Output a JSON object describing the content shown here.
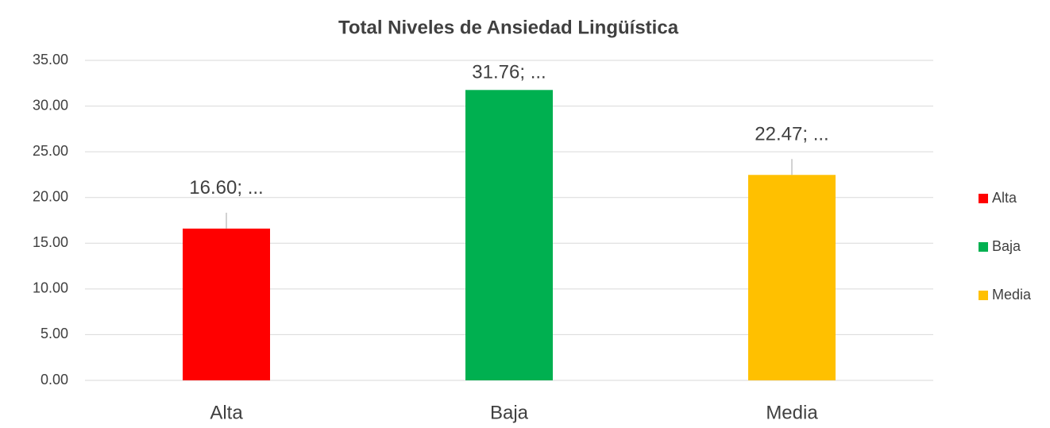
{
  "chart_data": {
    "type": "bar",
    "title": "Total Niveles de Ansiedad Lingüística",
    "categories": [
      "Alta",
      "Baja",
      "Media"
    ],
    "values": [
      16.6,
      31.76,
      22.47
    ],
    "value_labels": [
      "16.60; ...",
      "31.76; ...",
      "22.47; ..."
    ],
    "colors": [
      "#ff0000",
      "#00b050",
      "#ffc000"
    ],
    "ylim": [
      0,
      35
    ],
    "yticks": [
      {
        "value": 0,
        "label": "0.00"
      },
      {
        "value": 5,
        "label": "5.00"
      },
      {
        "value": 10,
        "label": "10.00"
      },
      {
        "value": 15,
        "label": "15.00"
      },
      {
        "value": 20,
        "label": "20.00"
      },
      {
        "value": 25,
        "label": "25.00"
      },
      {
        "value": 30,
        "label": "30.00"
      },
      {
        "value": 35,
        "label": "35.00"
      }
    ],
    "grid": true,
    "legend": "right"
  }
}
